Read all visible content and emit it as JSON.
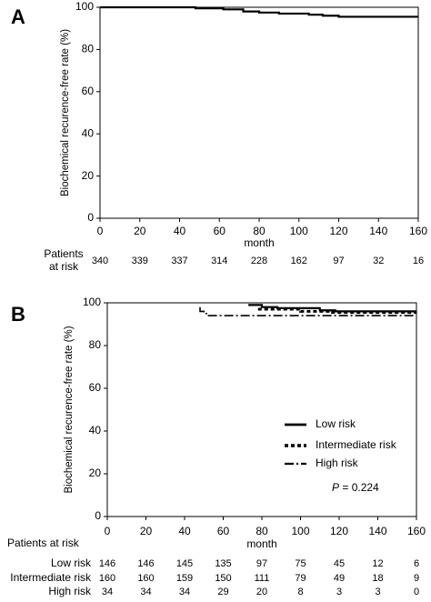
{
  "chart_data": [
    {
      "type": "step",
      "panel": "A",
      "xlabel": "month",
      "ylabel": "Biochemical recurence-free rate (%)",
      "xlim": [
        0,
        160
      ],
      "ylim": [
        0,
        100
      ],
      "xticks": [
        0,
        20,
        40,
        60,
        80,
        100,
        120,
        140,
        160
      ],
      "yticks": [
        0,
        20,
        40,
        60,
        80,
        100
      ],
      "series": [
        {
          "color": "#000000",
          "linestyle": "solid",
          "x": [
            0,
            48,
            48,
            62,
            62,
            72,
            72,
            80,
            80,
            90,
            90,
            105,
            105,
            112,
            112,
            120,
            120,
            160
          ],
          "values": [
            100,
            100,
            99.5,
            99.5,
            99,
            99,
            98,
            98,
            97.5,
            97.5,
            97,
            97,
            96.5,
            96.5,
            96,
            96,
            95.5,
            95.5
          ]
        }
      ],
      "risk_table": {
        "label": [
          "Patients",
          "at risk"
        ],
        "rows": [
          {
            "values": [
              340,
              339,
              337,
              314,
              228,
              162,
              97,
              32,
              16
            ]
          }
        ]
      }
    },
    {
      "type": "step",
      "panel": "B",
      "xlabel": "month",
      "ylabel": "Biochemical recurence-free rate (%)",
      "xlim": [
        0,
        160
      ],
      "ylim": [
        0,
        100
      ],
      "xticks": [
        0,
        20,
        40,
        60,
        80,
        100,
        120,
        140,
        160
      ],
      "yticks": [
        0,
        20,
        40,
        60,
        80,
        100
      ],
      "series": [
        {
          "name": "Low risk",
          "color": "#000000",
          "linestyle": "solid",
          "x": [
            73,
            80,
            80,
            88,
            88,
            110,
            110,
            118,
            118,
            160
          ],
          "values": [
            99,
            99,
            98,
            98,
            97.5,
            97.5,
            96.5,
            96.5,
            96,
            96
          ]
        },
        {
          "name": "Intermediate risk",
          "color": "#000000",
          "linestyle": "dashed",
          "x": [
            78,
            100,
            100,
            115,
            115,
            160
          ],
          "values": [
            97,
            97,
            96,
            96,
            95.5,
            95.5
          ]
        },
        {
          "name": "High risk",
          "color": "#000000",
          "linestyle": "dashdot",
          "x": [
            48,
            48,
            50,
            50,
            52,
            52,
            160
          ],
          "values": [
            98,
            96,
            96,
            95,
            95,
            94,
            94
          ]
        }
      ],
      "annotation_symbol": "P",
      "annotation": "= 0.224",
      "risk_table": {
        "label": "Patients at risk",
        "rows": [
          {
            "name": "Low risk",
            "values": [
              146,
              146,
              145,
              135,
              97,
              75,
              45,
              12,
              6
            ]
          },
          {
            "name": "Intermediate risk",
            "values": [
              160,
              160,
              159,
              150,
              111,
              79,
              49,
              18,
              9
            ]
          },
          {
            "name": "High risk",
            "values": [
              34,
              34,
              34,
              29,
              20,
              8,
              3,
              3,
              0
            ]
          }
        ]
      }
    }
  ]
}
